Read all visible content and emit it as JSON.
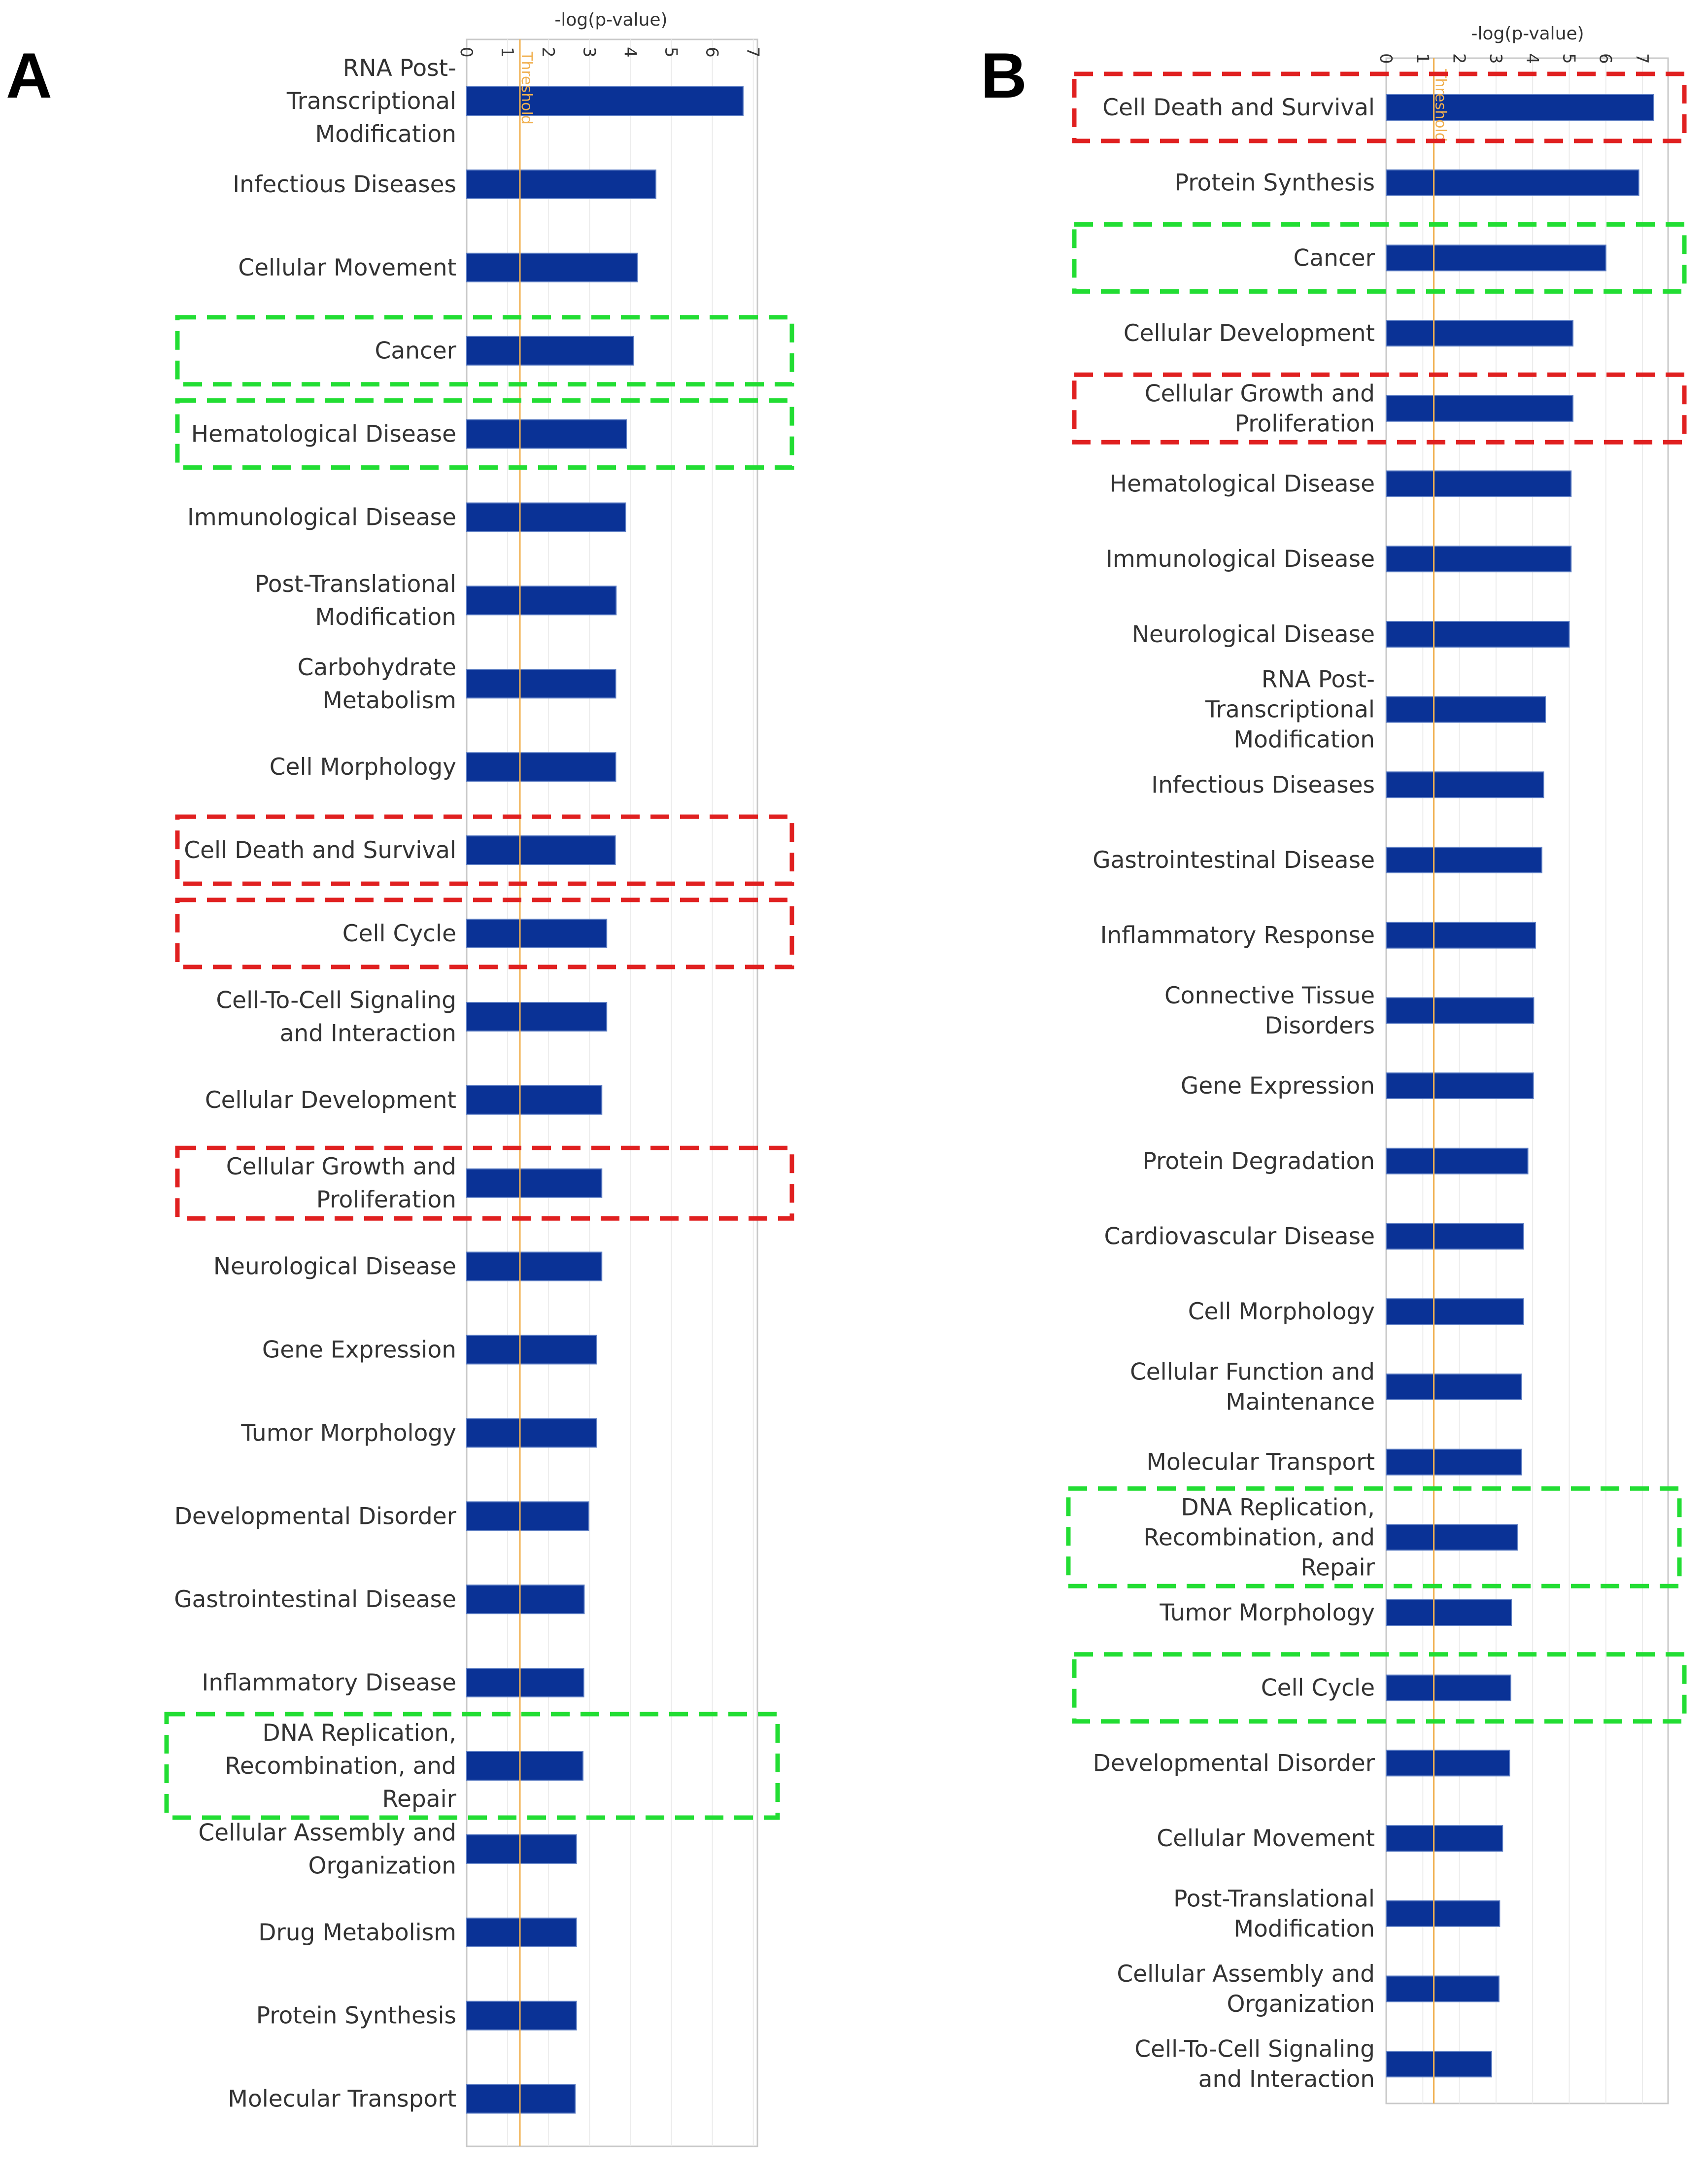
{
  "colors": {
    "bar": "#0a3296",
    "bar_stroke": "#5f7fc4",
    "threshold": "#f0b050",
    "frame": "#c9c9c9",
    "grid": "#ececec",
    "box_red": "#e02020",
    "box_green": "#22dd33",
    "text": "#333333"
  },
  "chart_data": [
    {
      "panel_letter": "A",
      "type": "bar",
      "orientation": "horizontal",
      "xlabel": "-log(p-value)",
      "xlim": [
        0,
        7.1
      ],
      "xticks": [
        0,
        1,
        2,
        3,
        4,
        5,
        6,
        7
      ],
      "threshold": {
        "value": 1.3,
        "label": "Threshold"
      },
      "grid": true,
      "categories": [
        [
          "RNA Post-",
          "Transcriptional",
          "Modification"
        ],
        [
          "Infectious Diseases"
        ],
        [
          "Cellular Movement"
        ],
        [
          "Cancer"
        ],
        [
          "Hematological Disease"
        ],
        [
          "Immunological Disease"
        ],
        [
          "Post-Translational",
          "Modification"
        ],
        [
          "Carbohydrate",
          "Metabolism"
        ],
        [
          "Cell Morphology"
        ],
        [
          "Cell Death and Survival"
        ],
        [
          "Cell Cycle"
        ],
        [
          "Cell-To-Cell Signaling",
          "and Interaction"
        ],
        [
          "Cellular Development"
        ],
        [
          "Cellular Growth and",
          "Proliferation"
        ],
        [
          "Neurological Disease"
        ],
        [
          "Gene Expression"
        ],
        [
          "Tumor Morphology"
        ],
        [
          "Developmental Disorder"
        ],
        [
          "Gastrointestinal Disease"
        ],
        [
          "Inflammatory Disease"
        ],
        [
          "DNA Replication,",
          "Recombination, and",
          "Repair"
        ],
        [
          "Cellular Assembly and",
          "Organization"
        ],
        [
          "Drug Metabolism"
        ],
        [
          "Protein Synthesis"
        ],
        [
          "Molecular Transport"
        ]
      ],
      "values": [
        6.75,
        4.62,
        4.17,
        4.08,
        3.9,
        3.88,
        3.65,
        3.64,
        3.64,
        3.63,
        3.42,
        3.42,
        3.3,
        3.3,
        3.3,
        3.17,
        3.17,
        2.98,
        2.87,
        2.86,
        2.84,
        2.68,
        2.68,
        2.68,
        2.65
      ],
      "highlight_boxes": [
        {
          "category_index": 3,
          "color": "green"
        },
        {
          "category_index": 4,
          "color": "green"
        },
        {
          "category_index": 9,
          "color": "red"
        },
        {
          "category_index": 10,
          "color": "red"
        },
        {
          "category_index": 13,
          "color": "red"
        },
        {
          "category_index": 20,
          "color": "green"
        }
      ]
    },
    {
      "panel_letter": "B",
      "type": "bar",
      "orientation": "horizontal",
      "xlabel": "-log(p-value)",
      "xlim": [
        0,
        7.7
      ],
      "xticks": [
        0,
        1,
        2,
        3,
        4,
        5,
        6,
        7
      ],
      "threshold": {
        "value": 1.3,
        "label": "Threshold"
      },
      "grid": true,
      "categories": [
        [
          "Cell Death and Survival"
        ],
        [
          "Protein Synthesis"
        ],
        [
          "Cancer"
        ],
        [
          "Cellular Development"
        ],
        [
          "Cellular Growth and",
          "Proliferation"
        ],
        [
          "Hematological Disease"
        ],
        [
          "Immunological Disease"
        ],
        [
          "Neurological Disease"
        ],
        [
          "RNA Post-",
          "Transcriptional",
          "Modification"
        ],
        [
          "Infectious Diseases"
        ],
        [
          "Gastrointestinal Disease"
        ],
        [
          "Inflammatory Response"
        ],
        [
          "Connective Tissue",
          "Disorders"
        ],
        [
          "Gene Expression"
        ],
        [
          "Protein Degradation"
        ],
        [
          "Cardiovascular Disease"
        ],
        [
          "Cell Morphology"
        ],
        [
          "Cellular Function and",
          "Maintenance"
        ],
        [
          "Molecular Transport"
        ],
        [
          "DNA Replication,",
          "Recombination, and",
          "Repair"
        ],
        [
          "Tumor Morphology"
        ],
        [
          "Cell Cycle"
        ],
        [
          "Developmental Disorder"
        ],
        [
          "Cellular Movement"
        ],
        [
          "Post-Translational",
          "Modification"
        ],
        [
          "Cellular Assembly and",
          "Organization"
        ],
        [
          "Cell-To-Cell Signaling",
          "and Interaction"
        ]
      ],
      "values": [
        7.3,
        6.9,
        6.0,
        5.1,
        5.1,
        5.05,
        5.05,
        5.0,
        4.35,
        4.3,
        4.25,
        4.08,
        4.03,
        4.02,
        3.87,
        3.75,
        3.75,
        3.7,
        3.7,
        3.58,
        3.42,
        3.4,
        3.37,
        3.18,
        3.1,
        3.08,
        2.88
      ],
      "highlight_boxes": [
        {
          "category_index": 0,
          "color": "red"
        },
        {
          "category_index": 2,
          "color": "green"
        },
        {
          "category_index": 4,
          "color": "red"
        },
        {
          "category_index": 19,
          "color": "green"
        },
        {
          "category_index": 21,
          "color": "green"
        }
      ]
    }
  ]
}
